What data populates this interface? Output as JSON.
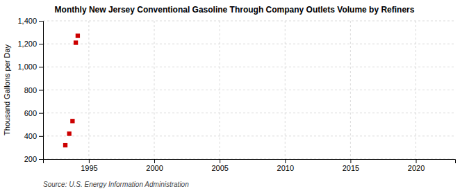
{
  "chart_data": {
    "type": "scatter",
    "title": "Monthly New Jersey Conventional Gasoline Through Company Outlets Volume by Refiners",
    "ylabel": "Thousand Gallons per Day",
    "annotations": [
      "Source: U.S. Energy Information Administration"
    ],
    "x": [
      1993.2,
      1993.5,
      1993.75,
      1994.0,
      1994.15
    ],
    "values": [
      320,
      420,
      530,
      1210,
      1270
    ],
    "color": "#cc0000",
    "marker": "square",
    "xlim": [
      1991.5,
      2023
    ],
    "ylim": [
      200,
      1400
    ],
    "xticks": [
      1995,
      2000,
      2005,
      2010,
      2015,
      2020
    ],
    "yticks": [
      200,
      400,
      600,
      800,
      {
        "value": 1000,
        "label": "1,000"
      },
      {
        "value": 1200,
        "label": "1,200"
      },
      {
        "value": 1400,
        "label": "1,400"
      }
    ],
    "grid": true
  }
}
